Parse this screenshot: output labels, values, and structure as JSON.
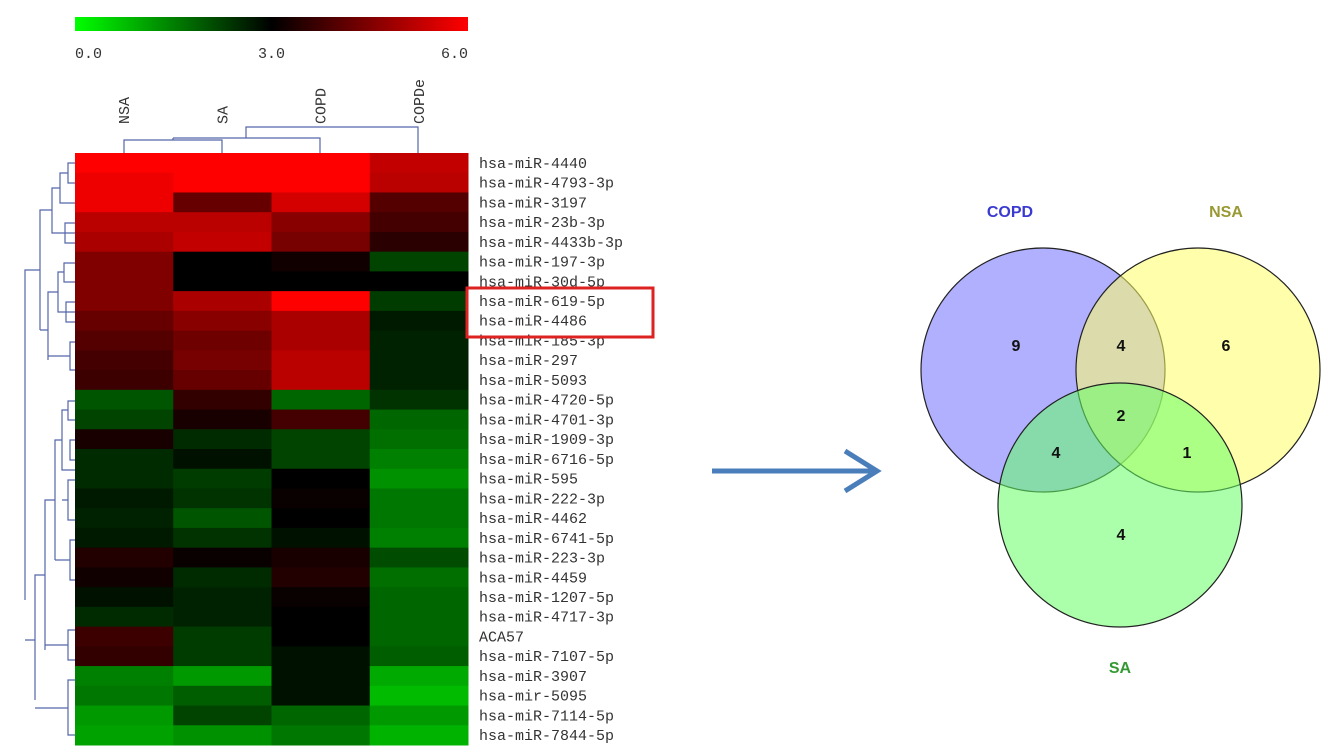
{
  "chart_data": [
    {
      "type": "heatmap",
      "columns": [
        "NSA",
        "SA",
        "COPD",
        "COPDe"
      ],
      "rows": [
        "hsa-miR-4440",
        "hsa-miR-4793-3p",
        "hsa-miR-3197",
        "hsa-miR-23b-3p",
        "hsa-miR-4433b-3p",
        "hsa-miR-197-3p",
        "hsa-miR-30d-5p",
        "hsa-miR-619-5p",
        "hsa-miR-4486",
        "hsa-miR-185-3p",
        "hsa-miR-297",
        "hsa-miR-5093",
        "hsa-miR-4720-5p",
        "hsa-miR-4701-3p",
        "hsa-miR-1909-3p",
        "hsa-miR-6716-5p",
        "hsa-miR-595",
        "hsa-miR-222-3p",
        "hsa-miR-4462",
        "hsa-miR-6741-5p",
        "hsa-miR-223-3p",
        "hsa-miR-4459",
        "hsa-miR-1207-5p",
        "hsa-miR-4717-3p",
        "ACA57",
        "hsa-miR-7107-5p",
        "hsa-miR-3907",
        "hsa-mir-5095",
        "hsa-miR-7114-5p",
        "hsa-miR-7844-5p"
      ],
      "values": [
        [
          6,
          6,
          6,
          5.3
        ],
        [
          5.8,
          6,
          6,
          5.2
        ],
        [
          5.8,
          4.2,
          5.5,
          4.0
        ],
        [
          5.2,
          5.2,
          4.6,
          3.8
        ],
        [
          5.0,
          5.3,
          4.4,
          3.5
        ],
        [
          4.5,
          3.0,
          3.2,
          2.2
        ],
        [
          4.5,
          3.0,
          3.0,
          3.0
        ],
        [
          4.5,
          5.0,
          6.0,
          2.3
        ],
        [
          4.2,
          4.6,
          5.0,
          2.7
        ],
        [
          4.0,
          4.3,
          5.0,
          2.6
        ],
        [
          3.8,
          4.4,
          5.2,
          2.6
        ],
        [
          3.7,
          4.2,
          5.2,
          2.6
        ],
        [
          2.0,
          3.6,
          1.8,
          2.4
        ],
        [
          2.2,
          3.3,
          3.8,
          1.8
        ],
        [
          3.3,
          2.5,
          2.2,
          1.7
        ],
        [
          2.5,
          2.8,
          2.2,
          1.5
        ],
        [
          2.5,
          2.3,
          3.0,
          1.3
        ],
        [
          2.7,
          2.4,
          3.1,
          1.6
        ],
        [
          2.6,
          2.0,
          3.0,
          1.6
        ],
        [
          2.7,
          2.4,
          2.8,
          1.5
        ],
        [
          3.4,
          3.1,
          3.3,
          2.1
        ],
        [
          3.2,
          2.5,
          3.4,
          1.7
        ],
        [
          2.8,
          2.6,
          3.1,
          1.8
        ],
        [
          2.5,
          2.6,
          3.0,
          1.8
        ],
        [
          3.7,
          2.3,
          3.0,
          1.8
        ],
        [
          3.6,
          2.3,
          2.8,
          1.9
        ],
        [
          1.5,
          1.2,
          2.8,
          1.0
        ],
        [
          1.6,
          1.9,
          2.8,
          0.8
        ],
        [
          1.2,
          2.2,
          1.8,
          1.2
        ],
        [
          1.1,
          1.3,
          1.6,
          0.9
        ]
      ],
      "zlim": [
        0,
        6
      ],
      "colorscale": [
        "#00ff00",
        "#000000",
        "#ff0000"
      ],
      "zticks": [
        {
          "value": 0,
          "label": "0.0"
        },
        {
          "value": 3,
          "label": "3.0"
        },
        {
          "value": 6,
          "label": "6.0"
        }
      ]
    },
    {
      "type": "venn",
      "sets": [
        {
          "name": "COPD",
          "color": "#6f6fff",
          "label_color": "#3a3ad0"
        },
        {
          "name": "NSA",
          "color": "#ffff66",
          "label_color": "#999933"
        },
        {
          "name": "SA",
          "color": "#66ff66",
          "label_color": "#339933"
        }
      ],
      "regions": [
        {
          "in": [
            0
          ],
          "value": 9
        },
        {
          "in": [
            1
          ],
          "value": 6
        },
        {
          "in": [
            2
          ],
          "value": 4
        },
        {
          "in": [
            0,
            1
          ],
          "value": 4
        },
        {
          "in": [
            0,
            2
          ],
          "value": 4
        },
        {
          "in": [
            1,
            2
          ],
          "value": 1
        },
        {
          "in": [
            0,
            1,
            2
          ],
          "value": 2
        }
      ]
    }
  ]
}
